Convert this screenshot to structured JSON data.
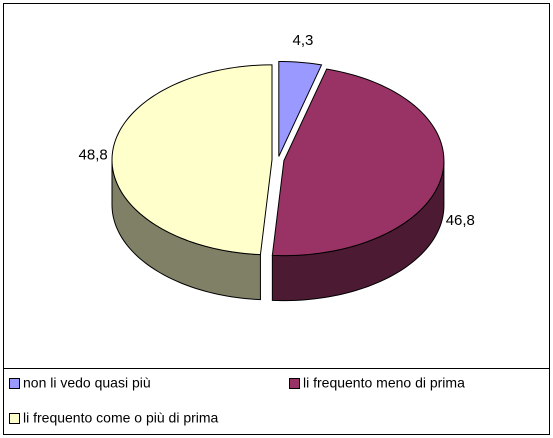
{
  "chart_data": {
    "type": "pie3d",
    "categories": [
      "non li vedo quasi più",
      "li frequento meno di prima",
      "li frequento come o più  di prima"
    ],
    "values": [
      4.3,
      46.8,
      48.8
    ],
    "value_labels": [
      "4,3",
      "46,8",
      "48,8"
    ],
    "colors": [
      "#9999ff",
      "#993366",
      "#ffffcc"
    ],
    "legend": "bottom"
  }
}
